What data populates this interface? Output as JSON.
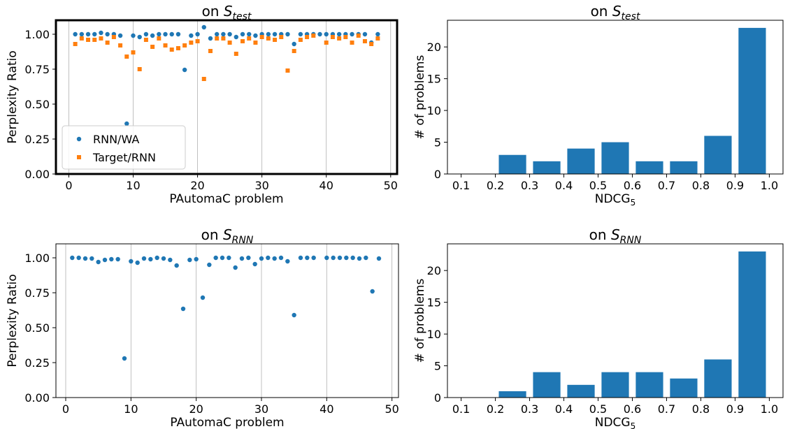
{
  "chart_data": [
    {
      "type": "scatter",
      "title": "on ",
      "title_subscript": "test",
      "title_var": "S",
      "xlabel": "PAutomaC problem",
      "ylabel": "Perplexity Ratio",
      "xlim": [
        -2,
        51
      ],
      "ylim": [
        0,
        1.1
      ],
      "xticks": [
        0,
        10,
        20,
        30,
        40,
        50
      ],
      "yticks": [
        0.0,
        0.25,
        0.5,
        0.75,
        1.0
      ],
      "ytick_labels": [
        "0.00",
        "0.25",
        "0.50",
        "0.75",
        "1.00"
      ],
      "grid": "x",
      "legend": "lower-left",
      "border": "thick",
      "series": [
        {
          "name": "RNN/WA",
          "color": "#1f77b4",
          "marker": "circle",
          "x": [
            1,
            2,
            3,
            4,
            5,
            6,
            7,
            8,
            9,
            10,
            11,
            12,
            13,
            14,
            15,
            16,
            17,
            18,
            19,
            20,
            21,
            22,
            23,
            24,
            25,
            26,
            27,
            28,
            29,
            30,
            31,
            32,
            33,
            34,
            35,
            36,
            37,
            38,
            39,
            40,
            41,
            42,
            43,
            44,
            45,
            46,
            47,
            48
          ],
          "y": [
            1.0,
            1.0,
            1.0,
            1.0,
            1.01,
            1.0,
            1.0,
            0.99,
            0.36,
            0.99,
            0.98,
            1.0,
            0.99,
            1.0,
            1.0,
            1.0,
            1.0,
            0.745,
            0.99,
            1.0,
            1.05,
            0.97,
            1.0,
            1.0,
            1.0,
            0.98,
            1.0,
            1.0,
            0.99,
            1.0,
            1.0,
            1.0,
            1.0,
            1.0,
            0.93,
            1.0,
            1.0,
            1.0,
            1.0,
            1.0,
            1.0,
            1.0,
            1.0,
            1.0,
            1.0,
            1.0,
            0.94,
            1.0
          ]
        },
        {
          "name": "Target/RNN",
          "color": "#ff7f0e",
          "marker": "square",
          "x": [
            1,
            2,
            3,
            4,
            5,
            6,
            7,
            8,
            9,
            10,
            11,
            12,
            13,
            14,
            15,
            16,
            17,
            18,
            19,
            20,
            21,
            22,
            23,
            24,
            25,
            26,
            27,
            28,
            29,
            30,
            31,
            32,
            33,
            34,
            35,
            36,
            37,
            38,
            39,
            40,
            41,
            42,
            43,
            44,
            45,
            46,
            47,
            48
          ],
          "y": [
            0.93,
            0.97,
            0.96,
            0.96,
            0.97,
            0.94,
            0.98,
            0.92,
            0.84,
            0.87,
            0.75,
            0.96,
            0.91,
            0.97,
            0.92,
            0.89,
            0.9,
            0.92,
            0.94,
            0.95,
            0.68,
            0.88,
            0.97,
            0.97,
            0.94,
            0.86,
            0.95,
            0.97,
            0.94,
            0.98,
            0.97,
            0.96,
            0.98,
            0.74,
            0.88,
            0.96,
            0.98,
            0.99,
            null,
            0.94,
            0.98,
            0.97,
            0.98,
            0.94,
            0.99,
            0.95,
            0.93,
            0.97
          ]
        }
      ]
    },
    {
      "type": "bar",
      "title": "on ",
      "title_subscript": "test",
      "title_var": "S",
      "xlabel": "NDCG",
      "xlabel_subscript": "5",
      "ylabel": "# of problems",
      "xlim": [
        0.06,
        1.04
      ],
      "ylim": [
        0,
        24.2
      ],
      "xticks": [
        "0.1",
        "0.2",
        "0.3",
        "0.4",
        "0.5",
        "0.6",
        "0.7",
        "0.8",
        "0.9",
        "1.0"
      ],
      "yticks": [
        0,
        5,
        10,
        15,
        20
      ],
      "categories": [
        "0.1-0.2",
        "0.2-0.3",
        "0.3-0.4",
        "0.4-0.5",
        "0.5-0.6",
        "0.6-0.7",
        "0.7-0.8",
        "0.8-0.9",
        "0.9-1.0"
      ],
      "bin_left": [
        0.1,
        0.2,
        0.3,
        0.4,
        0.5,
        0.6,
        0.7,
        0.8,
        0.9
      ],
      "values": [
        0,
        3,
        2,
        4,
        5,
        2,
        2,
        6,
        23
      ],
      "color": "#1f77b4"
    },
    {
      "type": "scatter",
      "title": "on ",
      "title_subscript": "RNN",
      "title_var": "S",
      "xlabel": "PAutomaC problem",
      "ylabel": "Perplexity Ratio",
      "xlim": [
        -1.5,
        51
      ],
      "ylim": [
        0,
        1.1
      ],
      "xticks": [
        0,
        10,
        20,
        30,
        40,
        50
      ],
      "yticks": [
        0.0,
        0.25,
        0.5,
        0.75,
        1.0
      ],
      "ytick_labels": [
        "0.00",
        "0.25",
        "0.50",
        "0.75",
        "1.00"
      ],
      "grid": "x",
      "legend": "none",
      "border": "thin",
      "series": [
        {
          "name": "",
          "color": "#1f77b4",
          "marker": "circle",
          "x": [
            1,
            2,
            3,
            4,
            5,
            6,
            7,
            8,
            9,
            10,
            11,
            12,
            13,
            14,
            15,
            16,
            17,
            18,
            19,
            20,
            21,
            22,
            23,
            24,
            25,
            26,
            27,
            28,
            29,
            30,
            31,
            32,
            33,
            34,
            35,
            36,
            37,
            38,
            39,
            40,
            41,
            42,
            43,
            44,
            45,
            46,
            47,
            48
          ],
          "y": [
            1.0,
            1.0,
            0.995,
            0.995,
            0.97,
            0.985,
            0.99,
            0.99,
            0.28,
            0.975,
            0.965,
            0.995,
            0.99,
            1.0,
            0.995,
            0.985,
            0.945,
            0.635,
            0.985,
            0.99,
            0.715,
            0.95,
            1.0,
            1.0,
            1.0,
            0.93,
            0.995,
            1.0,
            0.955,
            0.995,
            1.0,
            0.995,
            1.0,
            0.975,
            0.59,
            1.0,
            1.0,
            1.0,
            null,
            1.0,
            1.0,
            1.0,
            1.0,
            1.0,
            0.995,
            1.0,
            0.76,
            0.995
          ]
        }
      ]
    },
    {
      "type": "bar",
      "title": "on ",
      "title_subscript": "RNN",
      "title_var": "S",
      "xlabel": "NDCG",
      "xlabel_subscript": "5",
      "ylabel": "# of problems",
      "xlim": [
        0.06,
        1.04
      ],
      "ylim": [
        0,
        24.2
      ],
      "xticks": [
        "0.1",
        "0.2",
        "0.3",
        "0.4",
        "0.5",
        "0.6",
        "0.7",
        "0.8",
        "0.9",
        "1.0"
      ],
      "yticks": [
        0,
        5,
        10,
        15,
        20
      ],
      "categories": [
        "0.1-0.2",
        "0.2-0.3",
        "0.3-0.4",
        "0.4-0.5",
        "0.5-0.6",
        "0.6-0.7",
        "0.7-0.8",
        "0.8-0.9",
        "0.9-1.0"
      ],
      "bin_left": [
        0.1,
        0.2,
        0.3,
        0.4,
        0.5,
        0.6,
        0.7,
        0.8,
        0.9
      ],
      "values": [
        0,
        1,
        4,
        2,
        4,
        4,
        3,
        6,
        23
      ],
      "color": "#1f77b4"
    }
  ]
}
